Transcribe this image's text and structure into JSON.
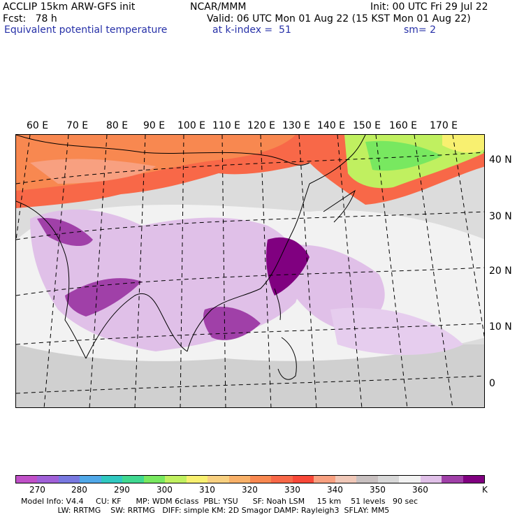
{
  "header": {
    "line1_left": "ACCLIP 15km ARW-GFS init",
    "line1_center": "NCAR/MMM",
    "line1_right": "Init: 00 UTC Fri 29 Jul 22",
    "line2_left": "Fcst:   78 h",
    "line2_right": "Valid: 06 UTC Mon 01 Aug 22 (15 KST Mon 01 Aug 22)",
    "line3_left": "Equivalent potential temperature",
    "line3_center": "at k-index =  51",
    "line3_right": "sm= 2"
  },
  "map": {
    "lon_labels": [
      "60 E",
      "70 E",
      "80 E",
      "90 E",
      "100 E",
      "110 E",
      "120 E",
      "130 E",
      "140 E",
      "150 E",
      "160 E",
      "170 E"
    ],
    "lat_labels": [
      "40 N",
      "30 N",
      "20 N",
      "10 N",
      "0"
    ]
  },
  "colorbar": {
    "unit": "K",
    "ticks": [
      "270",
      "280",
      "290",
      "300",
      "310",
      "320",
      "330",
      "340",
      "350",
      "360"
    ],
    "colors": [
      "#c050c8",
      "#a060d8",
      "#7878e0",
      "#50a8e8",
      "#30c8c0",
      "#40d890",
      "#78e860",
      "#c0f060",
      "#f8f070",
      "#f8d080",
      "#f8b068",
      "#f88850",
      "#f86848",
      "#f84838",
      "#f8a080",
      "#f0c8b8",
      "#c8c0c0",
      "#d8d8d8",
      "#f2f2f2",
      "#e0c0e8",
      "#a040a8",
      "#800080"
    ]
  },
  "footer": {
    "line1": "Model Info: V4.4     CU: KF      MP: WDM 6class  PBL: YSU      SF: Noah LSM     15 km    51 levels   90 sec",
    "line2": "               LW: RRTMG    SW: RRTMG   DIFF: simple KM: 2D Smagor DAMP: Rayleigh3  SFLAY: MM5"
  }
}
